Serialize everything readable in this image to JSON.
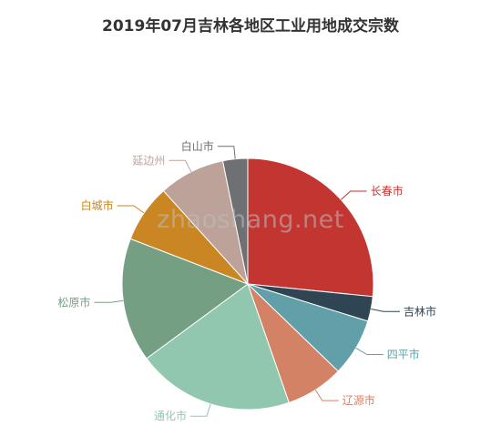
{
  "watermark": "zhaoshang.net",
  "chart_data": {
    "type": "pie",
    "title": "2019年07月吉林各地区工业用地成交宗数",
    "legend": "none",
    "slices": [
      {
        "name": "长春市",
        "value": 25,
        "color": "#c23531"
      },
      {
        "name": "吉林市",
        "value": 3,
        "color": "#2f4554"
      },
      {
        "name": "四平市",
        "value": 7,
        "color": "#61a0a8"
      },
      {
        "name": "辽源市",
        "value": 7,
        "color": "#d48265"
      },
      {
        "name": "通化市",
        "value": 19,
        "color": "#91c7ae"
      },
      {
        "name": "松原市",
        "value": 15,
        "color": "#749f83"
      },
      {
        "name": "白城市",
        "value": 7,
        "color": "#ca8622"
      },
      {
        "name": "延边州",
        "value": 8,
        "color": "#bda29a"
      },
      {
        "name": "白山市",
        "value": 3,
        "color": "#6e7074"
      }
    ]
  }
}
